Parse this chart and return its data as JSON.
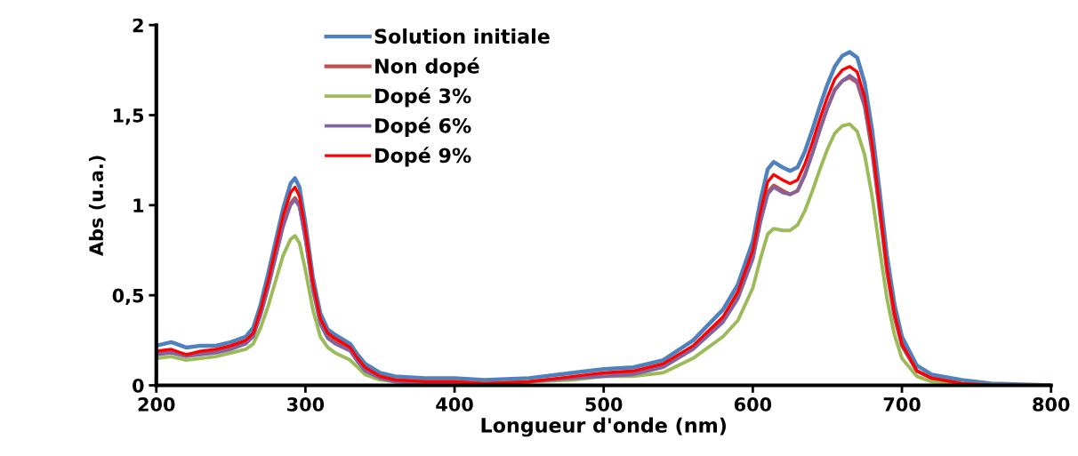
{
  "chart_data": {
    "type": "line",
    "xlabel": "Longueur d'onde (nm)",
    "ylabel": "Abs (u.a.)",
    "x": [
      200,
      210,
      220,
      230,
      240,
      250,
      260,
      265,
      270,
      275,
      280,
      285,
      290,
      293,
      296,
      300,
      305,
      310,
      315,
      320,
      330,
      335,
      340,
      350,
      360,
      380,
      400,
      420,
      450,
      480,
      500,
      520,
      540,
      560,
      580,
      590,
      600,
      605,
      610,
      614,
      620,
      625,
      630,
      635,
      640,
      645,
      650,
      655,
      660,
      665,
      670,
      675,
      680,
      685,
      690,
      695,
      700,
      710,
      720,
      740,
      760,
      800
    ],
    "series": [
      {
        "name": "Solution initiale",
        "color": "#4f81bd",
        "values": [
          0.22,
          0.24,
          0.21,
          0.22,
          0.22,
          0.24,
          0.27,
          0.32,
          0.45,
          0.62,
          0.8,
          0.98,
          1.12,
          1.15,
          1.1,
          0.9,
          0.6,
          0.4,
          0.31,
          0.28,
          0.23,
          0.17,
          0.12,
          0.07,
          0.05,
          0.04,
          0.04,
          0.03,
          0.04,
          0.07,
          0.09,
          0.1,
          0.14,
          0.25,
          0.42,
          0.56,
          0.8,
          1.02,
          1.2,
          1.24,
          1.21,
          1.19,
          1.21,
          1.3,
          1.42,
          1.55,
          1.67,
          1.77,
          1.83,
          1.85,
          1.82,
          1.68,
          1.42,
          1.08,
          0.72,
          0.45,
          0.27,
          0.11,
          0.06,
          0.03,
          0.01,
          0
        ]
      },
      {
        "name": "Non dopé",
        "color": "#c0504d",
        "values": [
          0.18,
          0.19,
          0.17,
          0.18,
          0.19,
          0.21,
          0.24,
          0.28,
          0.4,
          0.55,
          0.72,
          0.89,
          1.01,
          1.04,
          1.0,
          0.82,
          0.54,
          0.35,
          0.27,
          0.24,
          0.2,
          0.14,
          0.09,
          0.05,
          0.03,
          0.02,
          0.02,
          0.01,
          0.02,
          0.04,
          0.06,
          0.07,
          0.11,
          0.21,
          0.36,
          0.49,
          0.71,
          0.91,
          1.07,
          1.11,
          1.08,
          1.06,
          1.08,
          1.17,
          1.29,
          1.42,
          1.54,
          1.64,
          1.69,
          1.71,
          1.68,
          1.55,
          1.3,
          0.97,
          0.63,
          0.38,
          0.22,
          0.08,
          0.04,
          0.01,
          0,
          0
        ]
      },
      {
        "name": "Dopé 3%",
        "color": "#9bbb59",
        "values": [
          0.15,
          0.16,
          0.14,
          0.15,
          0.16,
          0.18,
          0.2,
          0.23,
          0.32,
          0.44,
          0.58,
          0.72,
          0.81,
          0.83,
          0.79,
          0.64,
          0.42,
          0.27,
          0.21,
          0.18,
          0.14,
          0.1,
          0.06,
          0.03,
          0.02,
          0.01,
          0.01,
          0.01,
          0.02,
          0.03,
          0.05,
          0.05,
          0.07,
          0.15,
          0.27,
          0.36,
          0.54,
          0.7,
          0.84,
          0.87,
          0.86,
          0.86,
          0.89,
          0.97,
          1.08,
          1.2,
          1.31,
          1.4,
          1.44,
          1.45,
          1.41,
          1.28,
          1.05,
          0.76,
          0.48,
          0.28,
          0.15,
          0.05,
          0.02,
          0.01,
          0,
          0
        ]
      },
      {
        "name": "Dopé 6%",
        "color": "#8064a2",
        "values": [
          0.17,
          0.18,
          0.16,
          0.17,
          0.18,
          0.2,
          0.23,
          0.27,
          0.39,
          0.54,
          0.71,
          0.88,
          1.0,
          1.03,
          0.99,
          0.81,
          0.53,
          0.34,
          0.26,
          0.23,
          0.19,
          0.13,
          0.08,
          0.04,
          0.02,
          0.01,
          0.01,
          0.01,
          0.02,
          0.04,
          0.05,
          0.06,
          0.1,
          0.2,
          0.35,
          0.48,
          0.7,
          0.9,
          1.06,
          1.1,
          1.07,
          1.06,
          1.08,
          1.17,
          1.29,
          1.42,
          1.54,
          1.64,
          1.69,
          1.72,
          1.69,
          1.56,
          1.31,
          0.98,
          0.64,
          0.39,
          0.22,
          0.08,
          0.04,
          0.01,
          0,
          0
        ]
      },
      {
        "name": "Dopé 9%",
        "color": "#ff0000",
        "values": [
          0.19,
          0.2,
          0.17,
          0.19,
          0.2,
          0.22,
          0.25,
          0.29,
          0.42,
          0.58,
          0.76,
          0.94,
          1.07,
          1.1,
          1.05,
          0.86,
          0.57,
          0.37,
          0.29,
          0.26,
          0.21,
          0.15,
          0.1,
          0.05,
          0.03,
          0.02,
          0.02,
          0.01,
          0.02,
          0.05,
          0.07,
          0.08,
          0.12,
          0.22,
          0.38,
          0.52,
          0.75,
          0.96,
          1.13,
          1.17,
          1.14,
          1.12,
          1.14,
          1.23,
          1.35,
          1.48,
          1.6,
          1.7,
          1.75,
          1.77,
          1.74,
          1.6,
          1.34,
          1.0,
          0.65,
          0.4,
          0.23,
          0.08,
          0.04,
          0.01,
          0,
          0
        ]
      }
    ],
    "xlim": [
      200,
      800
    ],
    "xticks": [
      200,
      300,
      400,
      500,
      600,
      700,
      800
    ],
    "ylim": [
      0,
      2
    ],
    "yticks": [
      0,
      {
        "value": 0.5,
        "label": "0,5"
      },
      1,
      {
        "value": 1.5,
        "label": "1,5"
      },
      2
    ],
    "grid": false,
    "legend": "top left",
    "marker": "none",
    "line_style": "solid"
  }
}
